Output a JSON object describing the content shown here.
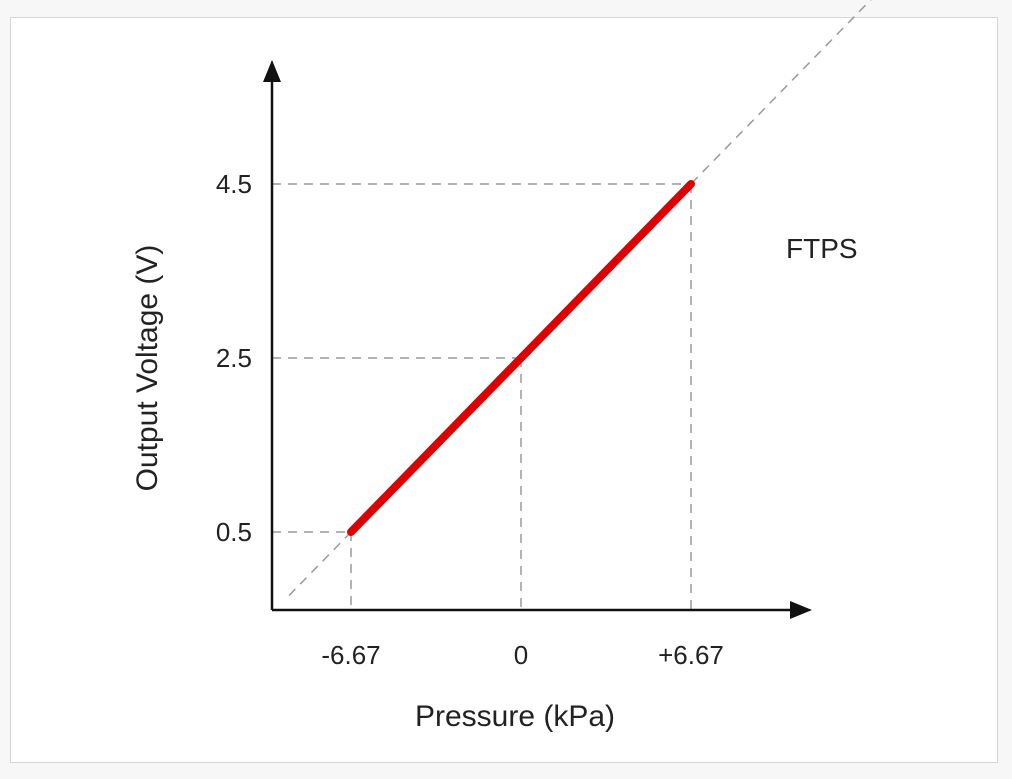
{
  "chart_data": {
    "type": "line",
    "xlabel": "Pressure (kPa)",
    "ylabel": "Output Voltage (V)",
    "x_ticks": [
      {
        "value": -6.67,
        "label": "-6.67"
      },
      {
        "value": 0,
        "label": "0"
      },
      {
        "value": 6.67,
        "label": "+6.67"
      }
    ],
    "y_ticks": [
      {
        "value": 0.5,
        "label": "0.5"
      },
      {
        "value": 2.5,
        "label": "2.5"
      },
      {
        "value": 4.5,
        "label": "4.5"
      }
    ],
    "series": [
      {
        "color": "#dd0000",
        "x": [
          -6.67,
          6.67
        ],
        "y": [
          0.5,
          4.5
        ]
      }
    ],
    "extension_line": {
      "x": [
        -9.1,
        15.8
      ],
      "y": [
        -0.23,
        7.24
      ]
    },
    "annotations": [
      {
        "text": "FTPS"
      }
    ],
    "grid": false,
    "axis_color": "#111111",
    "guide_color": "#9a9a9a"
  }
}
